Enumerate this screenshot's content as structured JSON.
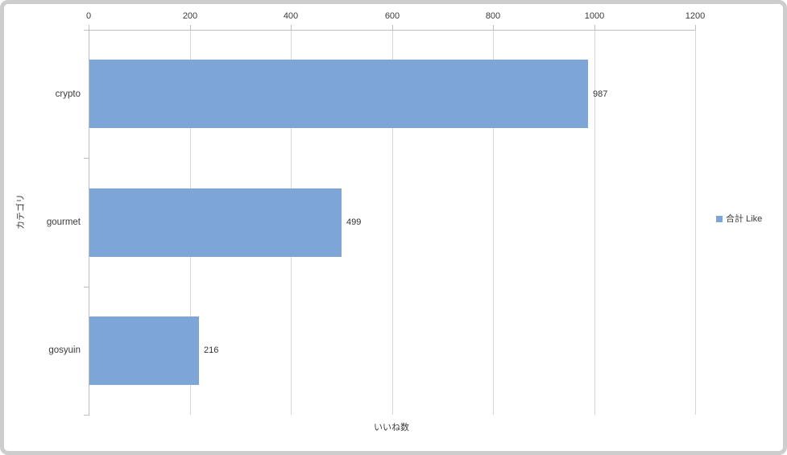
{
  "chart_data": {
    "type": "bar",
    "orientation": "horizontal",
    "title": "",
    "categories": [
      "crypto",
      "gourmet",
      "gosyuin"
    ],
    "series": [
      {
        "name": "合計 Like",
        "values": [
          987,
          499,
          216
        ]
      }
    ],
    "data_labels": [
      "987",
      "499",
      "216"
    ],
    "value_axis": {
      "title": "いいね数",
      "position": "top",
      "min": 0,
      "max": 1200,
      "tick_interval": 200,
      "ticks": [
        0,
        200,
        400,
        600,
        800,
        1000,
        1200
      ]
    },
    "category_axis": {
      "title": "カテゴリ"
    },
    "legend": {
      "label": "合計 Like",
      "position": "right"
    },
    "grid": true,
    "colors": {
      "bar": "#7da5d8",
      "gridline": "#d6d6d6",
      "axis": "#bdbdbd",
      "text": "#3a3a3a",
      "frame_border": "#cdcdcd",
      "background": "#ffffff"
    }
  }
}
